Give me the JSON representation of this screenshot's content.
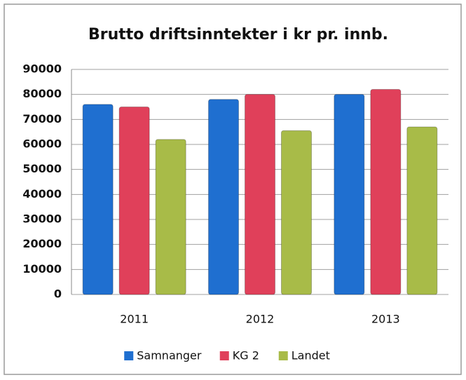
{
  "chart_data": {
    "type": "bar",
    "title": "Brutto driftsinntekter i kr pr. innb.",
    "categories": [
      "2011",
      "2012",
      "2013"
    ],
    "series": [
      {
        "name": "Samnanger",
        "color": "#1f6fd0",
        "values": [
          76000,
          78000,
          80000
        ]
      },
      {
        "name": "KG 2",
        "color": "#e0405a",
        "values": [
          75000,
          80000,
          82000
        ]
      },
      {
        "name": "Landet",
        "color": "#a8bb48",
        "values": [
          62000,
          65500,
          67000
        ]
      }
    ],
    "ylim": [
      0,
      90000
    ],
    "yticks": [
      0,
      10000,
      20000,
      30000,
      40000,
      50000,
      60000,
      70000,
      80000,
      90000
    ],
    "grid": true,
    "legend": "bottom"
  }
}
